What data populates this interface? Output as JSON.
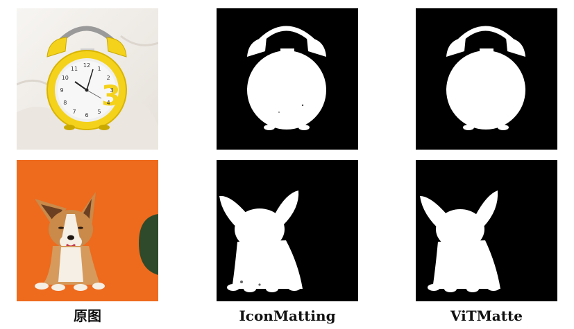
{
  "captions": {
    "original": "原图",
    "method_a": "IconMatting",
    "method_b": "ViTMatte"
  },
  "rows": [
    {
      "subject": "alarm-clock",
      "clock_numerals": [
        "12",
        "1",
        "2",
        "3",
        "4",
        "5",
        "6",
        "7",
        "8",
        "9",
        "10",
        "11"
      ]
    },
    {
      "subject": "corgi-puppy"
    }
  ],
  "colors": {
    "matte_background": "#000000",
    "matte_foreground": "#ffffff",
    "clock_yellow": "#f4d21c",
    "orange_background": "#ee6a1d",
    "page_background": "#ffffff"
  }
}
